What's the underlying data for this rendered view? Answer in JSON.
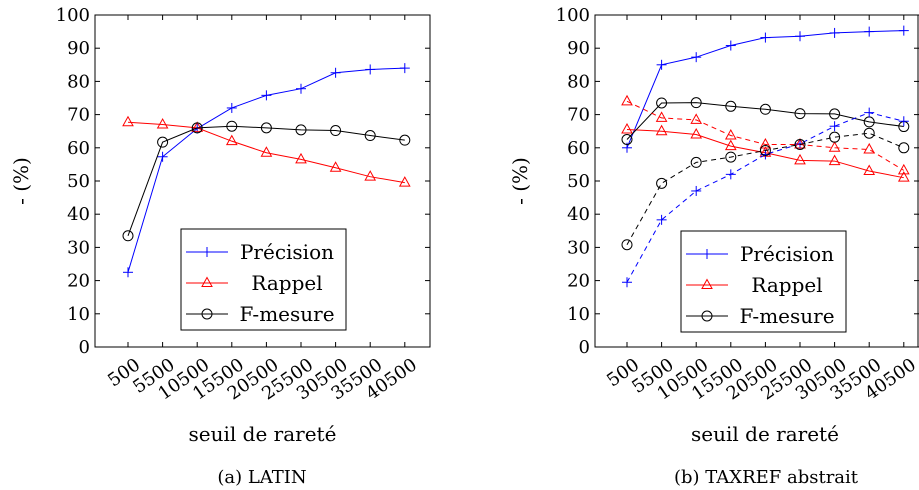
{
  "chart_data": [
    {
      "type": "line",
      "title": "",
      "caption": "(a) LATIN",
      "xlabel": "seuil de rareté",
      "ylabel": "- (%)",
      "ylim": [
        0,
        100
      ],
      "yticks": [
        "0",
        "10",
        "20",
        "30",
        "40",
        "50",
        "60",
        "70",
        "80",
        "90",
        "100"
      ],
      "x": [
        500,
        5500,
        10500,
        15500,
        20500,
        25500,
        30500,
        35500,
        40500
      ],
      "xticks": [
        "500",
        "5500",
        "10500",
        "15500",
        "20500",
        "25500",
        "30500",
        "35500",
        "40500"
      ],
      "grid": false,
      "legend_position": "bottom-right",
      "series": [
        {
          "name": "Précision",
          "color": "#0000ff",
          "marker": "plus",
          "dash": "solid",
          "values": [
            22.5,
            57.3,
            65.8,
            72.0,
            75.8,
            77.8,
            82.6,
            83.6,
            84.0
          ]
        },
        {
          "name": "Rappel",
          "color": "#ff0000",
          "marker": "triangle",
          "dash": "solid",
          "values": [
            67.7,
            67.0,
            66.0,
            62.0,
            58.5,
            56.5,
            54.0,
            51.3,
            49.5
          ]
        },
        {
          "name": "F-mesure",
          "color": "#000000",
          "marker": "circle",
          "dash": "solid",
          "values": [
            33.5,
            61.7,
            66.0,
            66.5,
            66.0,
            65.4,
            65.2,
            63.7,
            62.3
          ]
        }
      ]
    },
    {
      "type": "line",
      "title": "",
      "caption": "(b) TAXREF abstrait",
      "xlabel": "seuil de rareté",
      "ylabel": "- (%)",
      "ylim": [
        0,
        100
      ],
      "yticks": [
        "0",
        "10",
        "20",
        "30",
        "40",
        "50",
        "60",
        "70",
        "80",
        "90",
        "100"
      ],
      "x": [
        500,
        5500,
        10500,
        15500,
        20500,
        25500,
        30500,
        35500,
        40500
      ],
      "xticks": [
        "500",
        "5500",
        "10500",
        "15500",
        "20500",
        "25500",
        "30500",
        "35500",
        "40500"
      ],
      "grid": false,
      "legend_position": "bottom-right",
      "series": [
        {
          "name": "Précision",
          "color": "#0000ff",
          "marker": "plus",
          "dash": "solid",
          "values": [
            60.0,
            85.0,
            87.3,
            90.8,
            93.2,
            93.6,
            94.6,
            95.0,
            95.3
          ]
        },
        {
          "name": "Rappel",
          "color": "#ff0000",
          "marker": "triangle",
          "dash": "solid",
          "values": [
            65.5,
            65.0,
            64.0,
            60.5,
            58.5,
            56.2,
            56.0,
            53.0,
            51.0
          ]
        },
        {
          "name": "F-mesure",
          "color": "#000000",
          "marker": "circle",
          "dash": "solid",
          "values": [
            62.5,
            73.5,
            73.6,
            72.5,
            71.6,
            70.3,
            70.2,
            67.8,
            66.4
          ]
        },
        {
          "name": "",
          "color": "#0000ff",
          "marker": "plus",
          "dash": "dashed",
          "values": [
            19.5,
            38.3,
            47.0,
            52.0,
            58.0,
            61.2,
            66.5,
            70.6,
            68.0
          ]
        },
        {
          "name": "",
          "color": "#ff0000",
          "marker": "triangle",
          "dash": "dashed",
          "values": [
            74.0,
            69.0,
            68.4,
            63.7,
            61.0,
            61.0,
            60.0,
            59.5,
            53.2
          ]
        },
        {
          "name": "",
          "color": "#000000",
          "marker": "circle",
          "dash": "dashed",
          "values": [
            30.8,
            49.3,
            55.6,
            57.2,
            59.2,
            61.0,
            63.2,
            64.4,
            60.0
          ]
        }
      ]
    }
  ]
}
